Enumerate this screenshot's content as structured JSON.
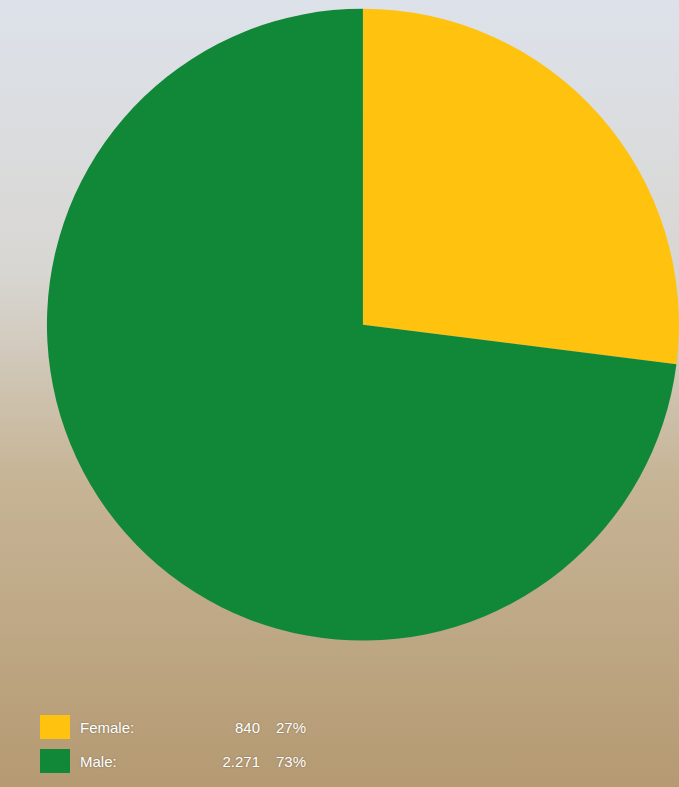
{
  "chart_data": {
    "type": "pie",
    "categories": [
      "Female:",
      "Male:"
    ],
    "values": [
      840,
      2271
    ],
    "value_labels": [
      "840",
      "2.271"
    ],
    "percent_labels": [
      "27%",
      "73%"
    ],
    "colors": [
      "#ffc20e",
      "#118838"
    ],
    "legend": "bottom left"
  }
}
